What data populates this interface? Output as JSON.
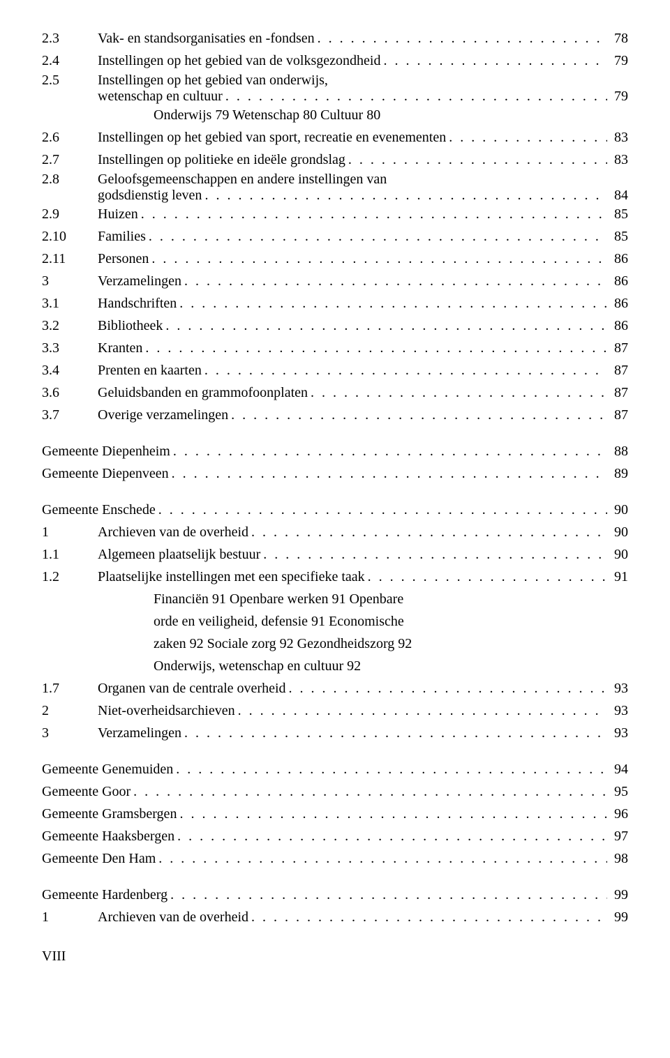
{
  "dots": ". . . . . . . . . . . . . . . . . . . . . . . . . . . . . . . . . . . . . . . . . . . . . . . . . . . . . . . . . . . . . . . . . . . . . . . . . . . . . . . . . . . . . . . . . . .",
  "entries1": [
    {
      "num": "2.3",
      "label": "Vak- en standsorganisaties en -fondsen",
      "page": "78"
    },
    {
      "num": "2.4",
      "label": "Instellingen op het gebied van de volksgezondheid",
      "page": "79"
    },
    {
      "num": "2.5",
      "label": "Instellingen op het gebied van onderwijs,",
      "label2": "wetenschap en cultuur",
      "page": "79",
      "multiline": true
    },
    {
      "sub": "Onderwijs  79      Wetenschap  80      Cultuur  80"
    },
    {
      "num": "2.6",
      "label": "Instellingen op het gebied van sport, recreatie en evenementen",
      "page": "83"
    },
    {
      "num": "2.7",
      "label": "Instellingen op politieke en ideële grondslag",
      "page": "83"
    },
    {
      "num": "2.8",
      "label": "Geloofsgemeenschappen en andere instellingen van",
      "label2": "godsdienstig leven",
      "page": "84",
      "multiline": true
    },
    {
      "num": "2.9",
      "label": "Huizen",
      "page": "85"
    },
    {
      "num": "2.10",
      "label": "Families",
      "page": "85"
    },
    {
      "num": "2.11",
      "label": "Personen",
      "page": "86"
    },
    {
      "num": "3",
      "label": "Verzamelingen",
      "page": "86"
    },
    {
      "num": "3.1",
      "label": "Handschriften",
      "page": "86"
    },
    {
      "num": "3.2",
      "label": "Bibliotheek",
      "page": "86"
    },
    {
      "num": "3.3",
      "label": "Kranten",
      "page": "87"
    },
    {
      "num": "3.4",
      "label": "Prenten en kaarten",
      "page": "87"
    },
    {
      "num": "3.6",
      "label": "Geluidsbanden en grammofoonplaten",
      "page": "87"
    },
    {
      "num": "3.7",
      "label": "Overige verzamelingen",
      "page": "87"
    }
  ],
  "entries2": [
    {
      "group": "Gemeente Diepenheim",
      "page": "88"
    },
    {
      "group": "Gemeente Diepenveen",
      "page": "89"
    }
  ],
  "entries3": [
    {
      "group": "Gemeente Enschede",
      "page": "90"
    },
    {
      "num": "1",
      "label": "Archieven van de overheid",
      "page": "90"
    },
    {
      "num": "1.1",
      "label": "Algemeen plaatselijk bestuur",
      "page": "90"
    },
    {
      "num": "1.2",
      "label": "Plaatselijke instellingen met een specifieke taak",
      "page": "91"
    },
    {
      "sub": "Financiën  91      Openbare werken  91      Openbare"
    },
    {
      "sub": "orde en veiligheid, defensie  91      Economische"
    },
    {
      "sub": "zaken  92      Sociale zorg  92      Gezondheidszorg      92"
    },
    {
      "sub": "Onderwijs, wetenschap en cultuur  92"
    },
    {
      "num": "1.7",
      "label": "Organen van de centrale overheid",
      "page": "93"
    },
    {
      "num": "2",
      "label": "Niet-overheidsarchieven",
      "page": "93"
    },
    {
      "num": "3",
      "label": "Verzamelingen",
      "page": "93"
    }
  ],
  "entries4": [
    {
      "group": "Gemeente Genemuiden",
      "page": "94"
    },
    {
      "group": "Gemeente Goor",
      "page": "95"
    },
    {
      "group": "Gemeente Gramsbergen",
      "page": "96"
    },
    {
      "group": "Gemeente Haaksbergen",
      "page": "97"
    },
    {
      "group": "Gemeente Den Ham",
      "page": "98"
    }
  ],
  "entries5": [
    {
      "group": "Gemeente Hardenberg",
      "page": "99"
    },
    {
      "num": "1",
      "label": "Archieven van de overheid",
      "page": "99"
    }
  ],
  "footer": "VIII"
}
